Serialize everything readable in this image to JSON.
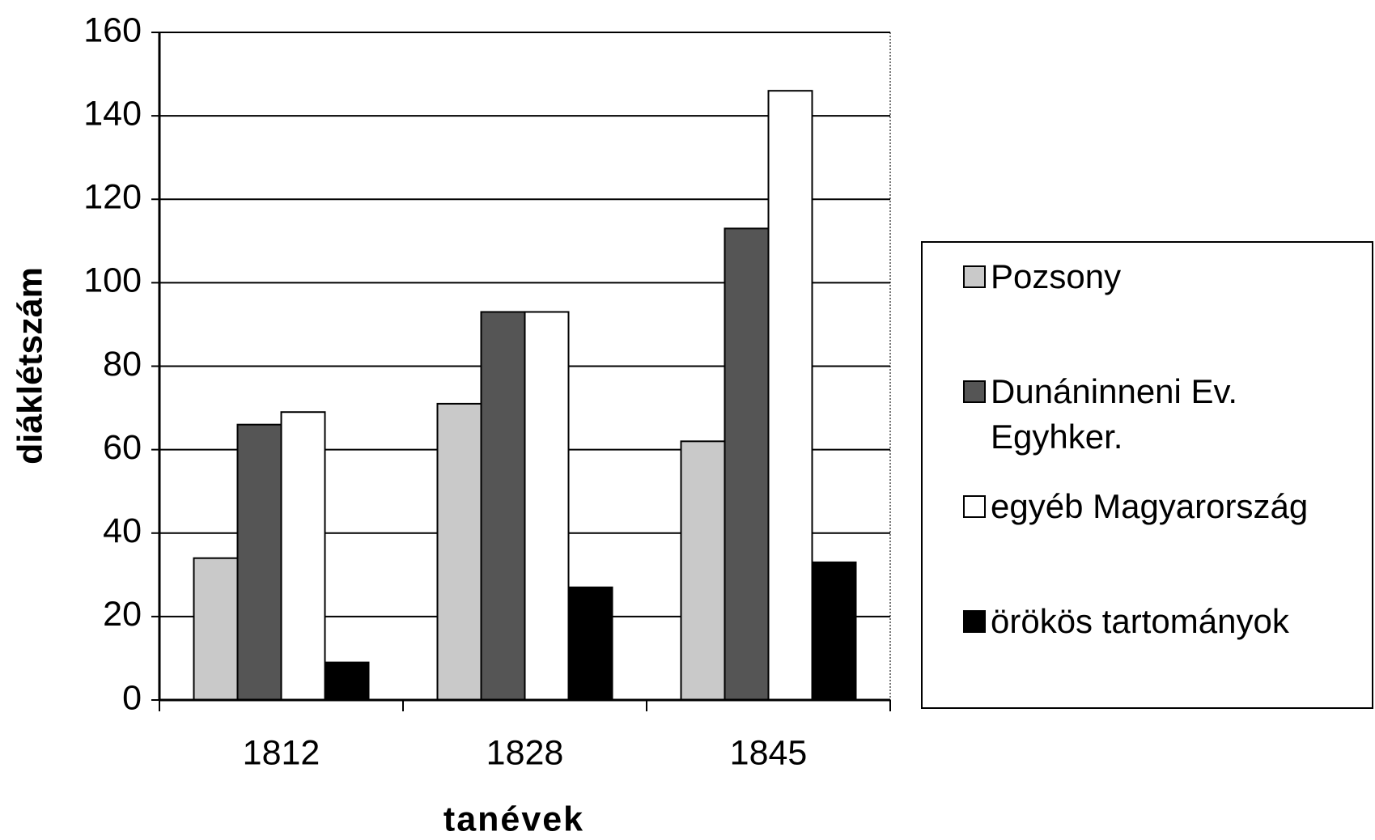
{
  "chart_data": {
    "type": "bar",
    "categories": [
      "1812",
      "1828",
      "1845"
    ],
    "series": [
      {
        "name": "Pozsony",
        "color": "#c9c9c9",
        "values": [
          34,
          71,
          62
        ]
      },
      {
        "name": "Dunáninneni Ev. Egyhker.",
        "color": "#555555",
        "values": [
          66,
          93,
          113
        ]
      },
      {
        "name": "egyéb Magyarország",
        "color": "#ffffff",
        "values": [
          69,
          93,
          146
        ]
      },
      {
        "name": "örökös tartományok",
        "color": "#000000",
        "values": [
          9,
          27,
          33
        ]
      }
    ],
    "ylim": [
      0,
      160
    ],
    "yticks": [
      0,
      20,
      40,
      60,
      80,
      100,
      120,
      140,
      160
    ],
    "grid": true,
    "legend": "right",
    "x_label": "tanévek",
    "y_label": "diáklétszám"
  }
}
